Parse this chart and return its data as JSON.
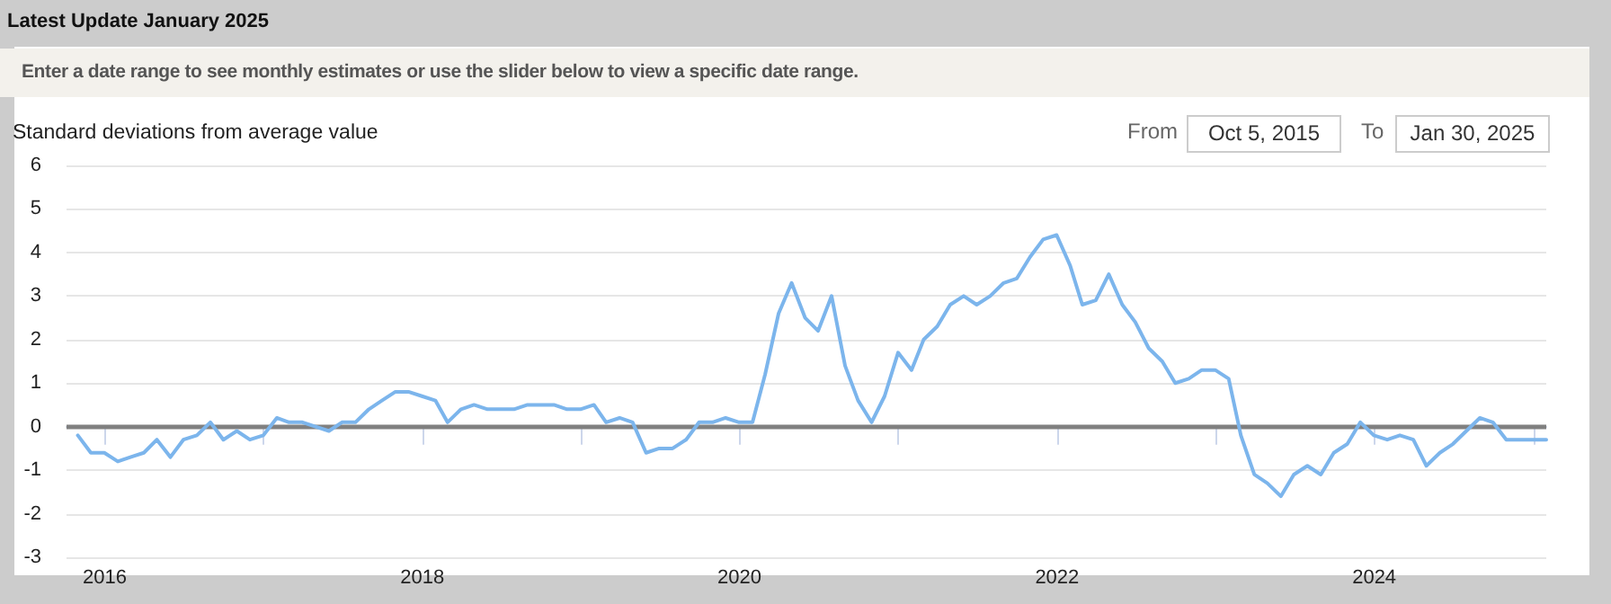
{
  "chart_data": {
    "type": "line",
    "title": "Latest Update January 2025",
    "subtitle": "Enter a date range to see monthly estimates or use the slider below to view a specific date range.",
    "ylabel": "Standard deviations from average value",
    "annotations": [
      "From",
      "Oct 5, 2015",
      "To",
      "Jan 30, 2025"
    ],
    "x": [
      "2015-10-31",
      "2015-11-30",
      "2015-12-31",
      "2016-01-31",
      "2016-02-29",
      "2016-03-31",
      "2016-04-30",
      "2016-05-31",
      "2016-06-30",
      "2016-07-31",
      "2016-08-31",
      "2016-09-30",
      "2016-10-31",
      "2016-11-30",
      "2016-12-31",
      "2017-01-31",
      "2017-02-28",
      "2017-03-31",
      "2017-04-30",
      "2017-05-31",
      "2017-06-30",
      "2017-07-31",
      "2017-08-31",
      "2017-09-30",
      "2017-10-31",
      "2017-11-30",
      "2017-12-31",
      "2018-01-31",
      "2018-02-28",
      "2018-03-31",
      "2018-04-30",
      "2018-05-31",
      "2018-06-30",
      "2018-07-31",
      "2018-08-31",
      "2018-09-30",
      "2018-10-31",
      "2018-11-30",
      "2018-12-31",
      "2019-01-31",
      "2019-02-28",
      "2019-03-31",
      "2019-04-30",
      "2019-05-31",
      "2019-06-30",
      "2019-07-31",
      "2019-08-31",
      "2019-09-30",
      "2019-10-31",
      "2019-11-30",
      "2019-12-31",
      "2020-01-31",
      "2020-02-29",
      "2020-03-31",
      "2020-04-30",
      "2020-05-31",
      "2020-06-30",
      "2020-07-31",
      "2020-08-31",
      "2020-09-30",
      "2020-10-31",
      "2020-11-30",
      "2020-12-31",
      "2021-01-31",
      "2021-02-28",
      "2021-03-31",
      "2021-04-30",
      "2021-05-31",
      "2021-06-30",
      "2021-07-31",
      "2021-08-31",
      "2021-09-30",
      "2021-10-31",
      "2021-11-30",
      "2021-12-31",
      "2022-01-31",
      "2022-02-28",
      "2022-03-31",
      "2022-04-30",
      "2022-05-31",
      "2022-06-30",
      "2022-07-31",
      "2022-08-31",
      "2022-09-30",
      "2022-10-31",
      "2022-11-30",
      "2022-12-31",
      "2023-01-31",
      "2023-02-28",
      "2023-03-31",
      "2023-04-30",
      "2023-05-31",
      "2023-06-30",
      "2023-07-31",
      "2023-08-31",
      "2023-09-30",
      "2023-10-31",
      "2023-11-30",
      "2023-12-31",
      "2024-01-31",
      "2024-02-29",
      "2024-03-31",
      "2024-04-30",
      "2024-05-31",
      "2024-06-30",
      "2024-07-31",
      "2024-08-31",
      "2024-09-30",
      "2024-10-31",
      "2024-11-30",
      "2024-12-31",
      "2025-01-31"
    ],
    "series": [
      {
        "color": "#7cb5ec",
        "values": [
          -0.2,
          -0.6,
          -0.6,
          -0.8,
          -0.7,
          -0.6,
          -0.3,
          -0.7,
          -0.3,
          -0.2,
          0.1,
          -0.3,
          -0.1,
          -0.3,
          -0.2,
          0.2,
          0.1,
          0.1,
          0.0,
          -0.1,
          0.1,
          0.1,
          0.4,
          0.6,
          0.8,
          0.8,
          0.7,
          0.6,
          0.1,
          0.4,
          0.5,
          0.4,
          0.4,
          0.4,
          0.5,
          0.5,
          0.5,
          0.4,
          0.4,
          0.5,
          0.1,
          0.2,
          0.1,
          -0.6,
          -0.5,
          -0.5,
          -0.3,
          0.1,
          0.1,
          0.2,
          0.1,
          0.1,
          1.2,
          2.6,
          3.3,
          2.5,
          2.2,
          3.0,
          1.4,
          0.6,
          0.1,
          0.7,
          1.7,
          1.3,
          2.0,
          2.3,
          2.8,
          3.0,
          2.8,
          3.0,
          3.3,
          3.4,
          3.9,
          4.3,
          4.4,
          3.7,
          2.8,
          2.9,
          3.5,
          2.8,
          2.4,
          1.8,
          1.5,
          1.0,
          1.1,
          1.3,
          1.3,
          1.1,
          -0.2,
          -1.1,
          -1.3,
          -1.6,
          -1.1,
          -0.9,
          -1.1,
          -0.6,
          -0.4,
          0.1,
          -0.2,
          -0.3,
          -0.2,
          -0.3,
          -0.9,
          -0.6,
          -0.4,
          -0.1,
          0.2,
          0.1,
          -0.3,
          -0.3,
          -0.3,
          -0.3
        ]
      }
    ],
    "xlim": [
      "2015-10-05",
      "2025-01-31"
    ],
    "xticks": [
      {
        "value": "2016-01-01",
        "label": "2016"
      },
      {
        "value": "2017-01-01",
        "label": null
      },
      {
        "value": "2018-01-01",
        "label": "2018"
      },
      {
        "value": "2019-01-01",
        "label": null
      },
      {
        "value": "2020-01-01",
        "label": "2020"
      },
      {
        "value": "2021-01-01",
        "label": null
      },
      {
        "value": "2022-01-01",
        "label": "2022"
      },
      {
        "value": "2023-01-01",
        "label": null
      },
      {
        "value": "2024-01-01",
        "label": "2024"
      },
      {
        "value": "2025-01-01",
        "label": null
      }
    ],
    "ylim": [
      -3,
      6
    ],
    "yticks": [
      -3,
      -2,
      -1,
      0,
      1,
      2,
      3,
      4,
      5,
      6
    ],
    "grid": "y",
    "marker": "none",
    "line_style": "solid",
    "ref_lines": [
      {
        "axis": "y",
        "value": 0,
        "color": "#808080"
      }
    ]
  }
}
